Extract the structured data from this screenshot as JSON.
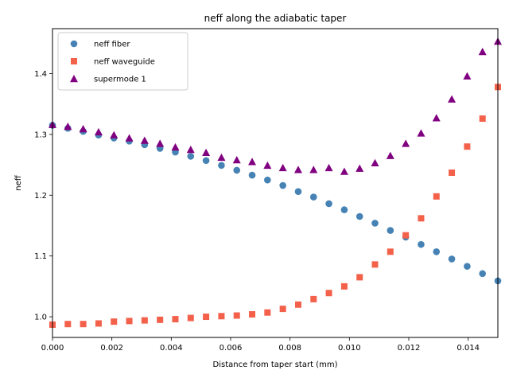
{
  "chart_data": {
    "type": "scatter",
    "title": "neff along the adiabatic taper",
    "xlabel": "Distance from taper start (mm)",
    "ylabel": "neff",
    "xlim": [
      0,
      0.015
    ],
    "ylim": [
      0.966,
      1.474
    ],
    "xticks": [
      0.0,
      0.002,
      0.004,
      0.006,
      0.008,
      0.01,
      0.012,
      0.014
    ],
    "xtick_labels": [
      "0.000",
      "0.002",
      "0.004",
      "0.006",
      "0.008",
      "0.010",
      "0.012",
      "0.014"
    ],
    "yticks": [
      1.0,
      1.1,
      1.2,
      1.3,
      1.4
    ],
    "ytick_labels": [
      "1.0",
      "1.1",
      "1.2",
      "1.3",
      "1.4"
    ],
    "grid": false,
    "legend_position": "top-left",
    "x": [
      0,
      0.000517,
      0.001034,
      0.001552,
      0.002069,
      0.002586,
      0.003103,
      0.003621,
      0.004138,
      0.004655,
      0.005172,
      0.00569,
      0.006207,
      0.006724,
      0.007241,
      0.007759,
      0.008276,
      0.008793,
      0.00931,
      0.009828,
      0.010345,
      0.010862,
      0.011379,
      0.011897,
      0.012414,
      0.012931,
      0.013448,
      0.013966,
      0.014483,
      0.015
    ],
    "series": [
      {
        "name": "neff fiber",
        "marker": "circle",
        "color": "#4682b4",
        "values": [
          1.315,
          1.31,
          1.305,
          1.299,
          1.294,
          1.289,
          1.283,
          1.277,
          1.271,
          1.264,
          1.257,
          1.249,
          1.241,
          1.233,
          1.225,
          1.216,
          1.206,
          1.197,
          1.186,
          1.176,
          1.165,
          1.154,
          1.142,
          1.131,
          1.119,
          1.107,
          1.095,
          1.083,
          1.071,
          1.059
        ]
      },
      {
        "name": "neff waveguide",
        "marker": "square",
        "color": "#f4614b",
        "values": [
          0.987,
          0.988,
          0.988,
          0.989,
          0.992,
          0.993,
          0.994,
          0.995,
          0.996,
          0.998,
          1.0,
          1.001,
          1.002,
          1.004,
          1.007,
          1.013,
          1.02,
          1.029,
          1.039,
          1.05,
          1.065,
          1.086,
          1.107,
          1.134,
          1.162,
          1.198,
          1.237,
          1.28,
          1.326,
          1.378
        ]
      },
      {
        "name": "supermode 1",
        "marker": "triangle",
        "color": "#800080",
        "values": [
          1.316,
          1.313,
          1.309,
          1.304,
          1.299,
          1.294,
          1.29,
          1.285,
          1.279,
          1.275,
          1.27,
          1.262,
          1.258,
          1.255,
          1.249,
          1.245,
          1.242,
          1.242,
          1.245,
          1.239,
          1.244,
          1.253,
          1.265,
          1.285,
          1.302,
          1.327,
          1.358,
          1.396,
          1.436,
          1.453
        ]
      }
    ]
  }
}
